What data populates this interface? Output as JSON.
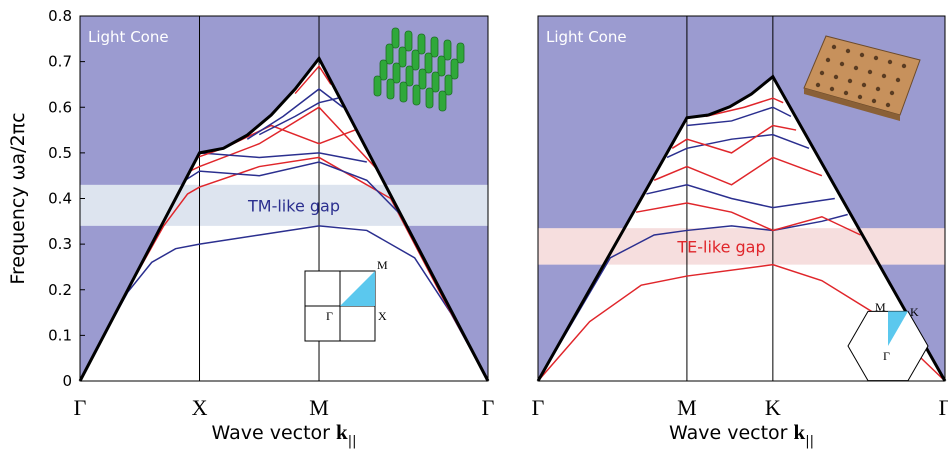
{
  "chart_data": [
    {
      "type": "line",
      "ylabel": "Frequency ωa/2πc",
      "xlabel": "Wave vector ",
      "xlabel_k": "k",
      "xlabel_subscript": "||",
      "xlim": [
        0,
        1.707
      ],
      "ylim": [
        0,
        0.8
      ],
      "xticks": [
        {
          "value": 0,
          "label": "Γ"
        },
        {
          "value": 0.5,
          "label": "X"
        },
        {
          "value": 1,
          "label": "M"
        },
        {
          "value": 1.707,
          "label": "Γ"
        }
      ],
      "yticks": [
        0,
        0.1,
        0.2,
        0.3,
        0.4,
        0.5,
        0.6,
        0.7,
        0.8
      ],
      "light_cone": {
        "label": "Light Cone",
        "color": "#9b9bd0",
        "x": [
          0,
          0.5,
          0.6,
          0.7,
          0.8,
          0.9,
          1.0,
          1.707
        ],
        "values": [
          0,
          0.5,
          0.51,
          0.539,
          0.583,
          0.64,
          0.707,
          0
        ]
      },
      "gap": {
        "label": "TM-like gap",
        "color": "#dde4ef",
        "label_color": "#2b2f8f",
        "range": [
          0.34,
          0.43
        ]
      },
      "bz_labels": [
        "M",
        "X",
        "Γ"
      ],
      "series": [
        {
          "color": "#2b2f8f",
          "x": [
            0,
            0.1,
            0.2,
            0.3,
            0.4,
            0.5,
            0.75,
            1.0,
            1.2,
            1.4,
            1.55,
            1.707
          ],
          "values": [
            0,
            0.1,
            0.195,
            0.26,
            0.29,
            0.3,
            0.32,
            0.34,
            0.33,
            0.27,
            0.15,
            0
          ]
        },
        {
          "color": "#e0262b",
          "x": [
            0,
            0.2,
            0.35,
            0.45,
            0.5,
            0.75,
            1.0,
            1.3,
            1.5,
            1.707
          ],
          "values": [
            0,
            0.2,
            0.34,
            0.41,
            0.425,
            0.47,
            0.49,
            0.4,
            0.2,
            0
          ]
        },
        {
          "color": "#2b2f8f",
          "x": [
            0.44,
            0.5,
            0.75,
            1.0,
            1.2,
            1.35
          ],
          "values": [
            0.44,
            0.46,
            0.45,
            0.48,
            0.44,
            0.36
          ]
        },
        {
          "color": "#e0262b",
          "x": [
            0.46,
            0.5,
            0.75,
            1.0,
            1.25
          ],
          "values": [
            0.46,
            0.47,
            0.52,
            0.6,
            0.46
          ]
        },
        {
          "color": "#2b2f8f",
          "x": [
            0.5,
            0.75,
            1.0,
            1.2
          ],
          "values": [
            0.5,
            0.49,
            0.5,
            0.48
          ]
        },
        {
          "color": "#e0262b",
          "x": [
            0.49,
            0.6,
            0.8,
            1.0,
            1.15
          ],
          "values": [
            0.49,
            0.51,
            0.56,
            0.52,
            0.55
          ]
        },
        {
          "color": "#2b2f8f",
          "x": [
            0.7,
            0.85,
            1.0,
            1.1
          ],
          "values": [
            0.53,
            0.58,
            0.64,
            0.6
          ]
        },
        {
          "color": "#e0262b",
          "x": [
            0.9,
            1.0,
            1.05
          ],
          "values": [
            0.63,
            0.69,
            0.65
          ]
        },
        {
          "color": "#2b2f8f",
          "x": [
            0.75,
            0.9,
            1.0,
            1.08
          ],
          "values": [
            0.54,
            0.58,
            0.61,
            0.62
          ]
        }
      ]
    },
    {
      "type": "line",
      "xlabel": "Wave vector ",
      "xlabel_k": "k",
      "xlabel_subscript": "||",
      "xlim": [
        0,
        1.577
      ],
      "ylim": [
        0,
        0.8
      ],
      "xticks": [
        {
          "value": 0,
          "label": "Γ"
        },
        {
          "value": 0.577,
          "label": "M"
        },
        {
          "value": 0.91,
          "label": "K"
        },
        {
          "value": 1.577,
          "label": "Γ"
        }
      ],
      "light_cone": {
        "label": "Light Cone",
        "color": "#9b9bd0",
        "x": [
          0,
          0.577,
          0.66,
          0.743,
          0.827,
          0.91,
          1.577
        ],
        "values": [
          0,
          0.577,
          0.583,
          0.601,
          0.629,
          0.667,
          0
        ]
      },
      "gap": {
        "label": "TE-like gap",
        "color": "#f6dede",
        "label_color": "#e0262b",
        "range": [
          0.255,
          0.335
        ]
      },
      "bz_labels": [
        "M",
        "K",
        "Γ"
      ],
      "series": [
        {
          "color": "#e0262b",
          "x": [
            0,
            0.2,
            0.4,
            0.577,
            0.91,
            1.1,
            1.3,
            1.577
          ],
          "values": [
            0,
            0.13,
            0.21,
            0.23,
            0.255,
            0.22,
            0.15,
            0
          ]
        },
        {
          "color": "#2b2f8f",
          "x": [
            0,
            0.28,
            0.45,
            0.577,
            0.75,
            0.91,
            1.1,
            1.2
          ],
          "values": [
            0,
            0.27,
            0.32,
            0.33,
            0.34,
            0.33,
            0.35,
            0.365
          ]
        },
        {
          "color": "#e0262b",
          "x": [
            0.38,
            0.577,
            0.75,
            0.91,
            1.1,
            1.25
          ],
          "values": [
            0.37,
            0.39,
            0.37,
            0.33,
            0.36,
            0.32
          ]
        },
        {
          "color": "#2b2f8f",
          "x": [
            0.42,
            0.577,
            0.75,
            0.91,
            1.15
          ],
          "values": [
            0.41,
            0.43,
            0.4,
            0.38,
            0.4
          ]
        },
        {
          "color": "#e0262b",
          "x": [
            0.45,
            0.577,
            0.75,
            0.91,
            1.1
          ],
          "values": [
            0.44,
            0.47,
            0.43,
            0.49,
            0.45
          ]
        },
        {
          "color": "#2b2f8f",
          "x": [
            0.5,
            0.577,
            0.75,
            0.91,
            1.05
          ],
          "values": [
            0.49,
            0.51,
            0.53,
            0.54,
            0.51
          ]
        },
        {
          "color": "#e0262b",
          "x": [
            0.52,
            0.577,
            0.75,
            0.91,
            1.0
          ],
          "values": [
            0.51,
            0.53,
            0.5,
            0.56,
            0.55
          ]
        },
        {
          "color": "#2b2f8f",
          "x": [
            0.577,
            0.75,
            0.91,
            0.98
          ],
          "values": [
            0.56,
            0.57,
            0.6,
            0.58
          ]
        },
        {
          "color": "#e0262b",
          "x": [
            0.65,
            0.8,
            0.91,
            0.95
          ],
          "values": [
            0.58,
            0.6,
            0.62,
            0.61
          ]
        }
      ]
    }
  ]
}
